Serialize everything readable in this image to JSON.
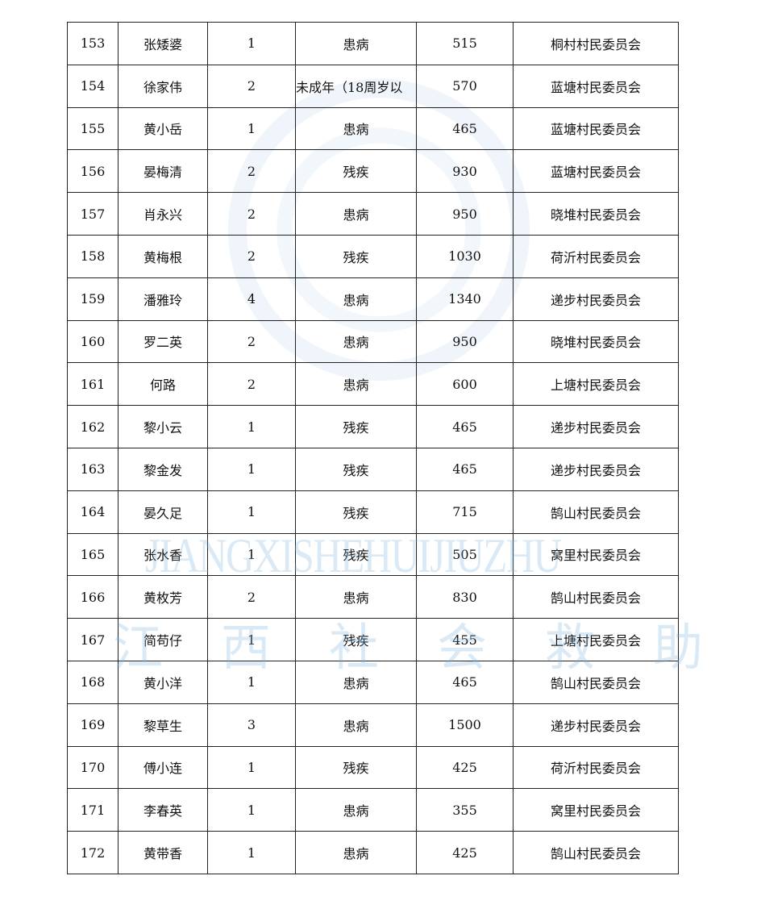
{
  "watermark": {
    "latin": "JIANGXISHEHUIJIUZHU",
    "chinese": "江西社会救助",
    "color": "#78afdc"
  },
  "table": {
    "rows": [
      [
        "153",
        "张矮婆",
        "1",
        "患病",
        "515",
        "桐村村民委员会"
      ],
      [
        "154",
        "徐家伟",
        "2",
        "未成年（18周岁以",
        "570",
        "蓝塘村民委员会"
      ],
      [
        "155",
        "黄小岳",
        "1",
        "患病",
        "465",
        "蓝塘村民委员会"
      ],
      [
        "156",
        "晏梅清",
        "2",
        "残疾",
        "930",
        "蓝塘村民委员会"
      ],
      [
        "157",
        "肖永兴",
        "2",
        "患病",
        "950",
        "晓堆村民委员会"
      ],
      [
        "158",
        "黄梅根",
        "2",
        "残疾",
        "1030",
        "荷沂村民委员会"
      ],
      [
        "159",
        "潘雅玲",
        "4",
        "患病",
        "1340",
        "递步村民委员会"
      ],
      [
        "160",
        "罗二英",
        "2",
        "患病",
        "950",
        "晓堆村民委员会"
      ],
      [
        "161",
        "何路",
        "2",
        "患病",
        "600",
        "上塘村民委员会"
      ],
      [
        "162",
        "黎小云",
        "1",
        "残疾",
        "465",
        "递步村民委员会"
      ],
      [
        "163",
        "黎金发",
        "1",
        "残疾",
        "465",
        "递步村民委员会"
      ],
      [
        "164",
        "晏久足",
        "1",
        "残疾",
        "715",
        "鹄山村民委员会"
      ],
      [
        "165",
        "张水香",
        "1",
        "残疾",
        "505",
        "窝里村民委员会"
      ],
      [
        "166",
        "黄枚芳",
        "2",
        "患病",
        "830",
        "鹄山村民委员会"
      ],
      [
        "167",
        "简苟仔",
        "1",
        "残疾",
        "455",
        "上塘村民委员会"
      ],
      [
        "168",
        "黄小洋",
        "1",
        "患病",
        "465",
        "鹄山村民委员会"
      ],
      [
        "169",
        "黎草生",
        "3",
        "患病",
        "1500",
        "递步村民委员会"
      ],
      [
        "170",
        "傅小连",
        "1",
        "残疾",
        "425",
        "荷沂村民委员会"
      ],
      [
        "171",
        "李春英",
        "1",
        "患病",
        "355",
        "窝里村民委员会"
      ],
      [
        "172",
        "黄带香",
        "1",
        "患病",
        "425",
        "鹄山村民委员会"
      ]
    ]
  }
}
